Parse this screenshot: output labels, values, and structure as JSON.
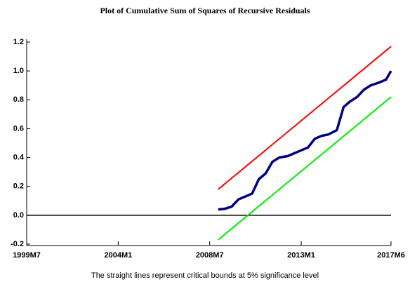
{
  "chart_data": {
    "type": "line",
    "title": "Plot of Cumulative Sum of Squares of Recursive Residuals",
    "note": "The straight lines represent critical bounds at 5% significance level",
    "xlim": [
      0,
      215
    ],
    "xticks": [
      {
        "value": 0,
        "label": "1999M7"
      },
      {
        "value": 54,
        "label": "2004M1"
      },
      {
        "value": 108,
        "label": "2008M7"
      },
      {
        "value": 162,
        "label": "2013M1"
      },
      {
        "value": 215,
        "label": "2017M6"
      }
    ],
    "ylim": [
      -0.2,
      1.2
    ],
    "yticks": [
      -0.2,
      {
        "value": 0,
        "label": "0.0"
      },
      0.2,
      0.4,
      0.6,
      0.8,
      {
        "value": 1,
        "label": "1.0"
      },
      1.2
    ],
    "zero_line": true,
    "series": [
      {
        "color": "#ff0000",
        "x": [
          113,
          215
        ],
        "values": [
          0.18,
          1.17
        ]
      },
      {
        "color": "#00ee00",
        "x": [
          113,
          215
        ],
        "values": [
          -0.17,
          0.82
        ]
      },
      {
        "color": "#000080",
        "x": [
          113,
          117,
          121,
          125,
          129,
          133,
          137,
          141,
          145,
          149,
          154,
          158,
          162,
          166,
          170,
          174,
          178,
          183,
          187,
          191,
          195,
          199,
          203,
          208,
          212,
          215
        ],
        "values": [
          0.04,
          0.045,
          0.06,
          0.11,
          0.13,
          0.15,
          0.25,
          0.29,
          0.37,
          0.4,
          0.41,
          0.43,
          0.45,
          0.47,
          0.53,
          0.55,
          0.56,
          0.59,
          0.75,
          0.79,
          0.82,
          0.87,
          0.9,
          0.92,
          0.94,
          1.0
        ]
      }
    ]
  }
}
